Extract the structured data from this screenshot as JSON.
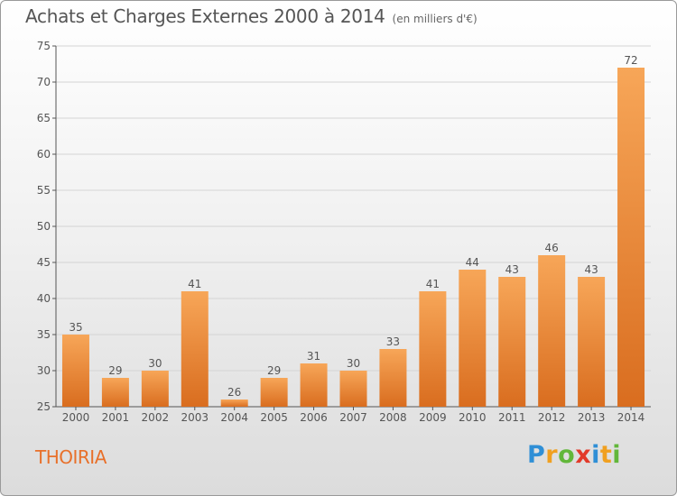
{
  "header": {
    "title": "Achats et Charges Externes 2000 à 2014",
    "unit": "(en milliers d'€)"
  },
  "footer": {
    "commune": "THOIRIA",
    "logo_letters": [
      "P",
      "r",
      "o",
      "x",
      "i",
      "t",
      "i"
    ],
    "logo_colors": [
      "#2f8fd6",
      "#f0a020",
      "#62b73a",
      "#e23a2a",
      "#2f8fd6",
      "#f0a020",
      "#62b73a"
    ]
  },
  "colors": {
    "bar_light": "#f7a658",
    "bar_dark": "#d96d1f",
    "grid": "#d4d4d4",
    "axis": "#555555",
    "commune": "#e8702a"
  },
  "chart_data": {
    "type": "bar",
    "categories": [
      "2000",
      "2001",
      "2002",
      "2003",
      "2004",
      "2005",
      "2006",
      "2007",
      "2008",
      "2009",
      "2010",
      "2011",
      "2012",
      "2013",
      "2014"
    ],
    "values": [
      35,
      29,
      30,
      41,
      26,
      29,
      31,
      30,
      33,
      41,
      44,
      43,
      46,
      43,
      72
    ],
    "title": "Achats et Charges Externes 2000 à 2014",
    "subtitle": "(en milliers d'€)",
    "xlabel": "",
    "ylabel": "",
    "ylim": [
      25,
      75
    ],
    "yticks": [
      25,
      30,
      35,
      40,
      45,
      50,
      55,
      60,
      65,
      70,
      75
    ],
    "grid": true,
    "data_labels": true
  }
}
